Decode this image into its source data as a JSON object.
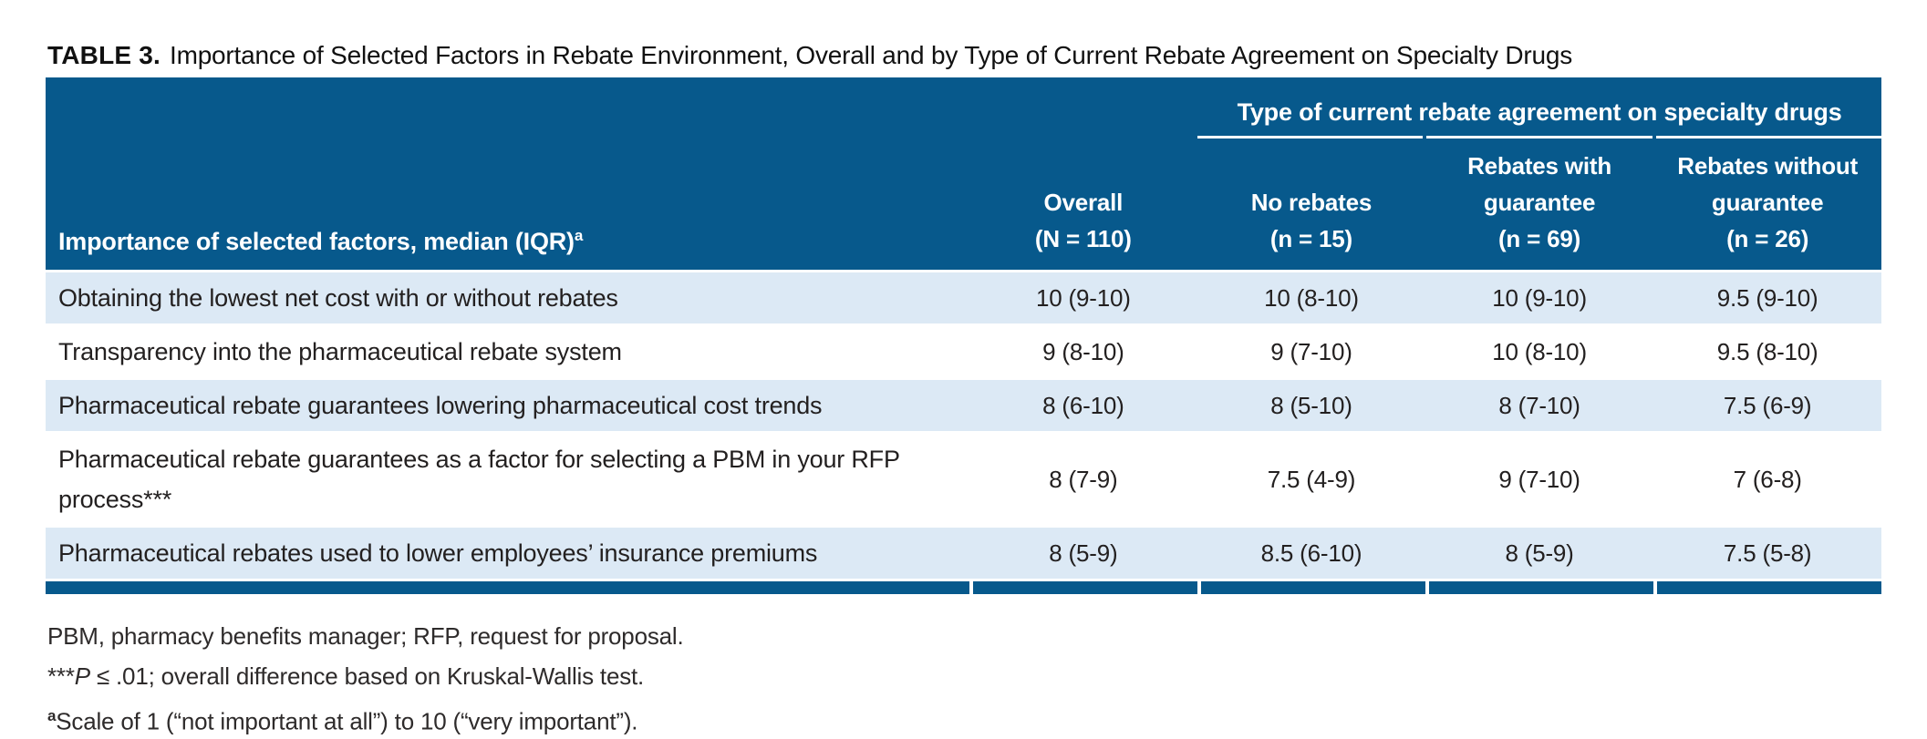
{
  "title": {
    "label": "TABLE 3.",
    "text": "Importance of Selected Factors in Rebate Environment, Overall and by Type of Current Rebate Agreement on Specialty Drugs"
  },
  "table": {
    "spanner": "Type of current rebate agreement on specialty drugs",
    "row_header": "Importance of selected factors, median (IQR)",
    "row_header_sup": "a",
    "columns": [
      {
        "lines": [
          "Overall",
          "(N = 110)"
        ]
      },
      {
        "lines": [
          "No rebates",
          "(n = 15)"
        ]
      },
      {
        "lines": [
          "Rebates with",
          "guarantee",
          "(n = 69)"
        ]
      },
      {
        "lines": [
          "Rebates without",
          "guarantee",
          "(n = 26)"
        ]
      }
    ],
    "rows": [
      {
        "factor": "Obtaining the lowest net cost with or without rebates",
        "values": [
          "10 (9-10)",
          "10 (8-10)",
          "10 (9-10)",
          "9.5 (9-10)"
        ]
      },
      {
        "factor": "Transparency into the pharmaceutical rebate system",
        "values": [
          "9 (8-10)",
          "9 (7-10)",
          "10 (8-10)",
          "9.5 (8-10)"
        ]
      },
      {
        "factor": "Pharmaceutical rebate guarantees lowering pharmaceutical cost trends",
        "values": [
          "8 (6-10)",
          "8 (5-10)",
          "8 (7-10)",
          "7.5 (6-9)"
        ]
      },
      {
        "factor": "Pharmaceutical rebate guarantees as a factor for selecting a PBM in your RFP process***",
        "values": [
          "8 (7-9)",
          "7.5 (4-9)",
          "9 (7-10)",
          "7 (6-8)"
        ]
      },
      {
        "factor": "Pharmaceutical rebates used to lower employees’ insurance premiums",
        "values": [
          "8 (5-9)",
          "8.5 (6-10)",
          "8 (5-9)",
          "7.5 (5-8)"
        ]
      }
    ]
  },
  "footnotes": {
    "abbrev": "PBM, pharmacy benefits manager; RFP, request for proposal.",
    "stats_prefix": "***",
    "stats_p": "P",
    "stats_rest": " ≤ .01; overall difference based on Kruskal-Wallis test.",
    "scale_sup": "a",
    "scale_text": "Scale of 1 (“not important at all”) to 10 (“very important”)."
  },
  "colors": {
    "header_blue": "#07598c",
    "row_blue": "#dce9f5",
    "text": "#232020"
  }
}
